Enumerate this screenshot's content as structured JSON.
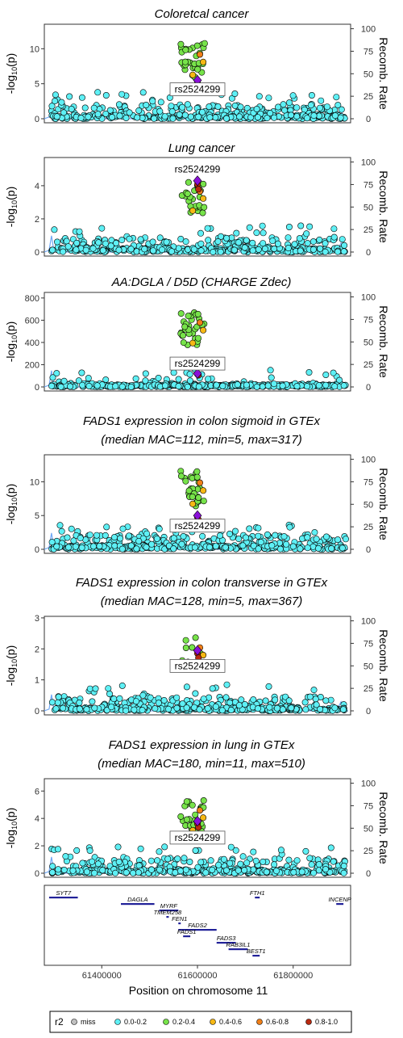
{
  "chart_data": {
    "type": "scatter",
    "lead_snp": "rs2524299",
    "x_range": [
      61280000,
      61920000
    ],
    "xlabel": "Position on chromosome 11",
    "x_ticks": [
      61400000,
      61600000,
      61800000
    ],
    "ylabel": "-log10(p)",
    "ylabel_right": "Recomb. Rate",
    "recomb_ticks": [
      0,
      25,
      50,
      75,
      100
    ],
    "panels": [
      {
        "title": [
          "Coloretcal cancer"
        ],
        "ylim": [
          0,
          13.5
        ],
        "y_ticks": [
          0,
          5,
          10
        ],
        "lead_y": 5.5,
        "label_pos": 4.2,
        "max_y": 10.8,
        "green_count": 30
      },
      {
        "title": [
          "Lung cancer"
        ],
        "ylim": [
          0,
          5.7
        ],
        "y_ticks": [
          0,
          2,
          4
        ],
        "lead_y": 4.3,
        "label_pos": 5.0,
        "max_y": 4.3,
        "green_count": 26
      },
      {
        "title": [
          "AA:DGLA / D5D (CHARGE Zdec)"
        ],
        "ylim": [
          0,
          850
        ],
        "y_ticks": [
          0,
          200,
          400,
          600,
          800
        ],
        "lead_y": 120,
        "label_pos": 210,
        "max_y": 680,
        "green_count": 34
      },
      {
        "title": [
          "FADS1 expression in colon sigmoid in GTEx",
          "(median MAC=112, min=5, max=317)"
        ],
        "ylim": [
          0,
          14
        ],
        "y_ticks": [
          0,
          5,
          10
        ],
        "lead_y": 5.0,
        "label_pos": 3.5,
        "max_y": 11.6,
        "green_count": 30
      },
      {
        "title": [
          "FADS1 expression in colon transverse in GTEx",
          "(median MAC=128, min=5, max=367)"
        ],
        "ylim": [
          0,
          3.05
        ],
        "y_ticks": [
          0,
          1,
          2,
          3
        ],
        "lead_y": 1.95,
        "label_pos": 1.45,
        "max_y": 2.4,
        "green_count": 14
      },
      {
        "title": [
          "FADS1 expression in lung in GTEx",
          "(median MAC=180, min=11, max=510)"
        ],
        "ylim": [
          0,
          6.9
        ],
        "y_ticks": [
          0,
          2,
          4,
          6
        ],
        "lead_y": 3.8,
        "label_pos": 2.6,
        "max_y": 5.4,
        "green_count": 26
      }
    ],
    "genes": [
      {
        "name": "SYT7",
        "start": 61290000,
        "end": 61350000,
        "row": 0
      },
      {
        "name": "FTH1",
        "start": 61720000,
        "end": 61730000,
        "row": 0
      },
      {
        "name": "DAGLA",
        "start": 61440000,
        "end": 61510000,
        "row": 1
      },
      {
        "name": "INCENP",
        "start": 61890000,
        "end": 61905000,
        "row": 1
      },
      {
        "name": "MYRF",
        "start": 61520000,
        "end": 61560000,
        "row": 2
      },
      {
        "name": "TMEM258",
        "start": 61535000,
        "end": 61540000,
        "row": 3
      },
      {
        "name": "FEN1",
        "start": 61560000,
        "end": 61565000,
        "row": 4
      },
      {
        "name": "FADS2",
        "start": 61560000,
        "end": 61640000,
        "row": 5
      },
      {
        "name": "FADS1",
        "start": 61570000,
        "end": 61585000,
        "row": 6
      },
      {
        "name": "FADS3",
        "start": 61640000,
        "end": 61680000,
        "row": 7
      },
      {
        "name": "RAB3IL1",
        "start": 61665000,
        "end": 61705000,
        "row": 8
      },
      {
        "name": "BEST1",
        "start": 61715000,
        "end": 61730000,
        "row": 9
      }
    ],
    "legend": {
      "title": "r2",
      "entries": [
        {
          "label": "miss",
          "color": "#c0c0c0"
        },
        {
          "label": "0.0-0.2",
          "color": "#5ef0f5"
        },
        {
          "label": "0.2-0.4",
          "color": "#77e34a"
        },
        {
          "label": "0.4-0.6",
          "color": "#f6b814"
        },
        {
          "label": "0.6-0.8",
          "color": "#f07f18"
        },
        {
          "label": "0.8-1.0",
          "color": "#b92a10"
        }
      ]
    },
    "lead_color": "#8a10d8",
    "recomb_color": "#6fa8f5",
    "gene_color": "#222299"
  }
}
